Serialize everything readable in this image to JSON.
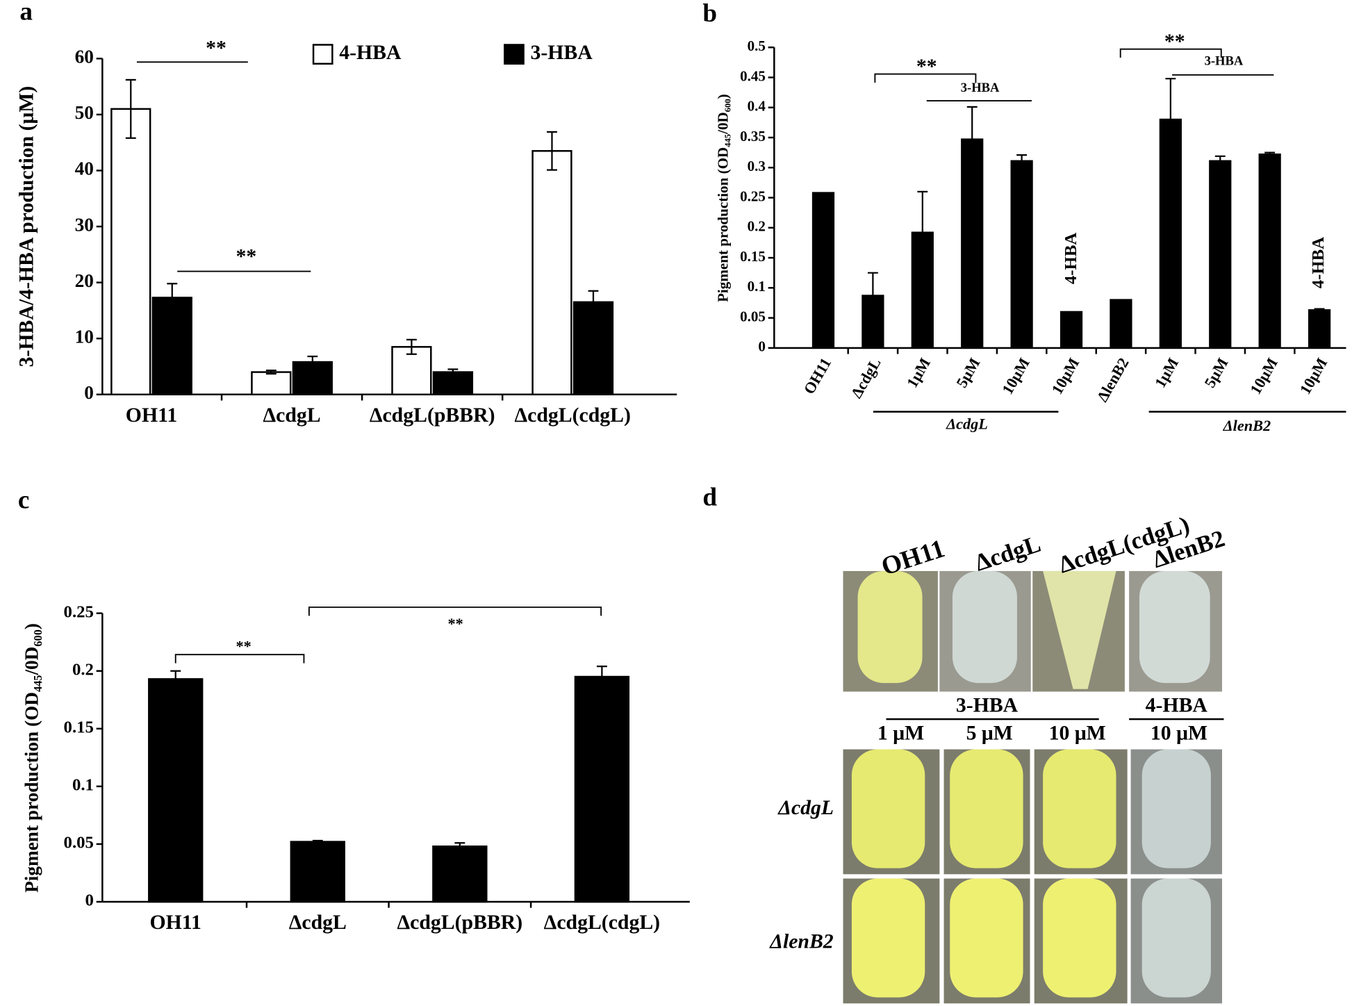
{
  "chart_data": [
    {
      "panel": "a",
      "type": "bar",
      "y_label": "3-HBA/4-HBA production (μM)",
      "categories": [
        "OH11",
        "ΔcdgL",
        "ΔcdgL(pBBR)",
        "ΔcdgL(cdgL)"
      ],
      "series": [
        {
          "name": "4-HBA",
          "color": "#ffffff",
          "edgecolor": "#000000",
          "values": [
            51,
            4,
            8.5,
            43.5
          ],
          "errors": [
            5.2,
            0.3,
            1.3,
            3.4
          ]
        },
        {
          "name": "3-HBA",
          "color": "#000000",
          "edgecolor": "#000000",
          "values": [
            17.3,
            5.8,
            4,
            16.5
          ],
          "errors": [
            2.5,
            1,
            0.5,
            2
          ]
        }
      ],
      "ylim": [
        0,
        60
      ],
      "yticks": [
        0,
        10,
        20,
        30,
        40,
        50,
        60
      ],
      "annotations": [
        {
          "text": "**"
        },
        {
          "text": "**"
        }
      ]
    },
    {
      "panel": "b",
      "type": "bar",
      "y_label": "Pigment production (OD₄₄₅/0D₆₀₀)",
      "categories": [
        "OH11",
        "ΔcdgL",
        "1μM",
        "5μM",
        "10μM",
        "10μM",
        "ΔlenB2",
        "1μM",
        "5μM",
        "10μM",
        "10μM"
      ],
      "values": [
        0.258,
        0.087,
        0.192,
        0.347,
        0.311,
        0.06,
        0.08,
        0.38,
        0.311,
        0.322,
        0.063
      ],
      "errors": [
        0,
        0.038,
        0.068,
        0.054,
        0.01,
        0,
        0,
        0.068,
        0.008,
        0.003,
        0.002
      ],
      "color": "#000000",
      "ylim": [
        0,
        0.5
      ],
      "yticks": [
        0,
        0.05,
        0.1,
        0.15,
        0.2,
        0.25,
        0.3,
        0.35,
        0.4,
        0.45,
        0.5
      ],
      "groups": [
        {
          "label": "ΔcdgL"
        },
        {
          "label": "ΔlenB2"
        }
      ],
      "annotations": [
        {
          "text": "**"
        },
        {
          "text": "3-HBA"
        },
        {
          "text": "4-HBA"
        },
        {
          "text": "**"
        },
        {
          "text": "3-HBA"
        },
        {
          "text": "4-HBA"
        }
      ]
    },
    {
      "panel": "c",
      "type": "bar",
      "y_label": "Pigment production (OD₄₄₅/0D₆₀₀)",
      "categories": [
        "OH11",
        "ΔcdgL",
        "ΔcdgL(pBBR)",
        "ΔcdgL(cdgL)"
      ],
      "values": [
        0.193,
        0.052,
        0.048,
        0.195
      ],
      "errors": [
        0.007,
        0.001,
        0.003,
        0.009
      ],
      "color": "#000000",
      "ylim": [
        0,
        0.25
      ],
      "yticks": [
        0,
        0.05,
        0.1,
        0.15,
        0.2,
        0.25
      ],
      "annotations": [
        {
          "text": "**"
        },
        {
          "text": "**"
        }
      ]
    }
  ],
  "panel_d": {
    "panel": "d",
    "column_labels": [
      "OH11",
      "ΔcdgL",
      "ΔcdgL(cdgL)",
      "ΔlenB2"
    ],
    "treatments": [
      "3-HBA",
      "4-HBA"
    ],
    "concentrations": [
      "1 μM",
      "5 μM",
      "10 μM",
      "10 μM"
    ],
    "row_labels": [
      "ΔcdgL",
      "ΔlenB2"
    ]
  }
}
